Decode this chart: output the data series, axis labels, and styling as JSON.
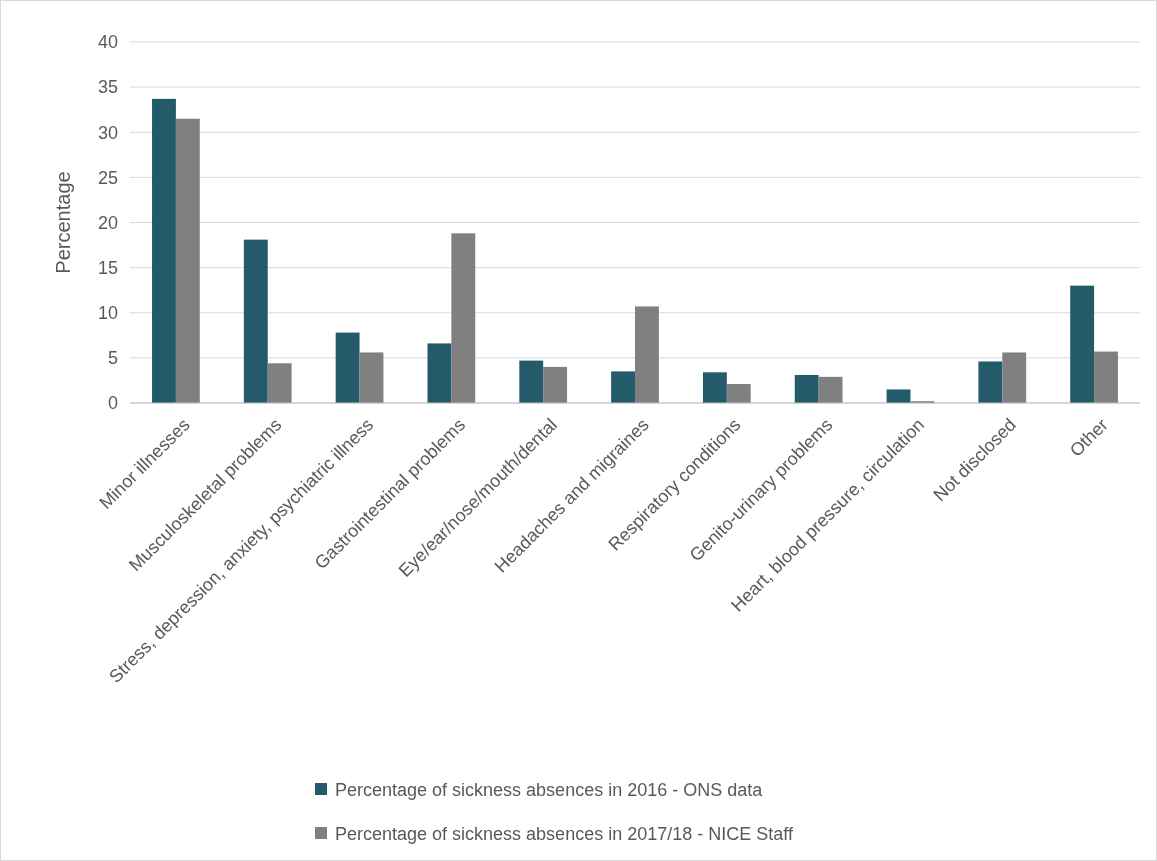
{
  "chart_data": {
    "type": "bar",
    "ylabel": "Percentage",
    "categories": [
      "Minor illnesses",
      "Musculoskeletal problems",
      "Stress, depression, anxiety, psychiatric illness",
      "Gastrointestinal problems",
      "Eye/ear/nose/mouth/dental",
      "Headaches and migraines",
      "Respiratory conditions",
      "Genito-urinary problems",
      "Heart, blood pressure, circulation",
      "Not disclosed",
      "Other"
    ],
    "series": [
      {
        "name": "Percentage of sickness absences in 2016 - ONS data",
        "color": "#235b6a",
        "values": [
          33.7,
          18.1,
          7.8,
          6.6,
          4.7,
          3.5,
          3.4,
          3.1,
          1.5,
          4.6,
          13.0
        ]
      },
      {
        "name": "Percentage of sickness absences in 2017/18 - NICE Staff",
        "color": "#808080",
        "values": [
          31.5,
          4.4,
          5.6,
          18.8,
          4.0,
          10.7,
          2.1,
          2.9,
          0.2,
          5.6,
          5.7
        ]
      }
    ],
    "ylim": [
      0,
      40
    ],
    "yticks": [
      0,
      5,
      10,
      15,
      20,
      25,
      30,
      35,
      40
    ],
    "grid": "y",
    "legend": "bottom"
  }
}
